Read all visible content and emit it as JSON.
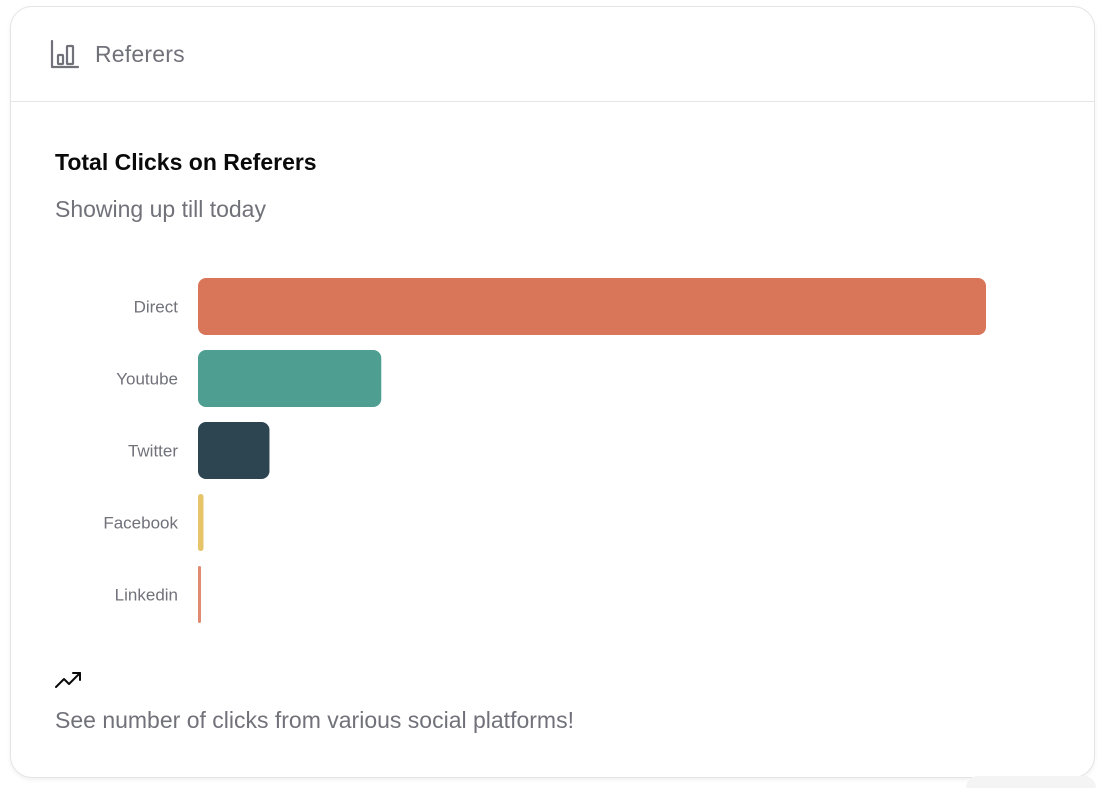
{
  "header": {
    "title": "Referers",
    "icon": "bar-chart-icon"
  },
  "chart_data": {
    "type": "bar",
    "orientation": "horizontal",
    "title": "Total Clicks on Referers",
    "subtitle": "Showing up till today",
    "categories": [
      "Direct",
      "Youtube",
      "Twitter",
      "Facebook",
      "Linkedin"
    ],
    "values": [
      430,
      100,
      39,
      3,
      1
    ],
    "colors": [
      "#d97559",
      "#4e9e91",
      "#2d4451",
      "#e6c46a",
      "#e08a72"
    ],
    "xlim": [
      0,
      430
    ],
    "grid": false,
    "legend": "none"
  },
  "footer": {
    "icon": "trending-up-icon",
    "text": "See number of clicks from various social platforms!"
  }
}
